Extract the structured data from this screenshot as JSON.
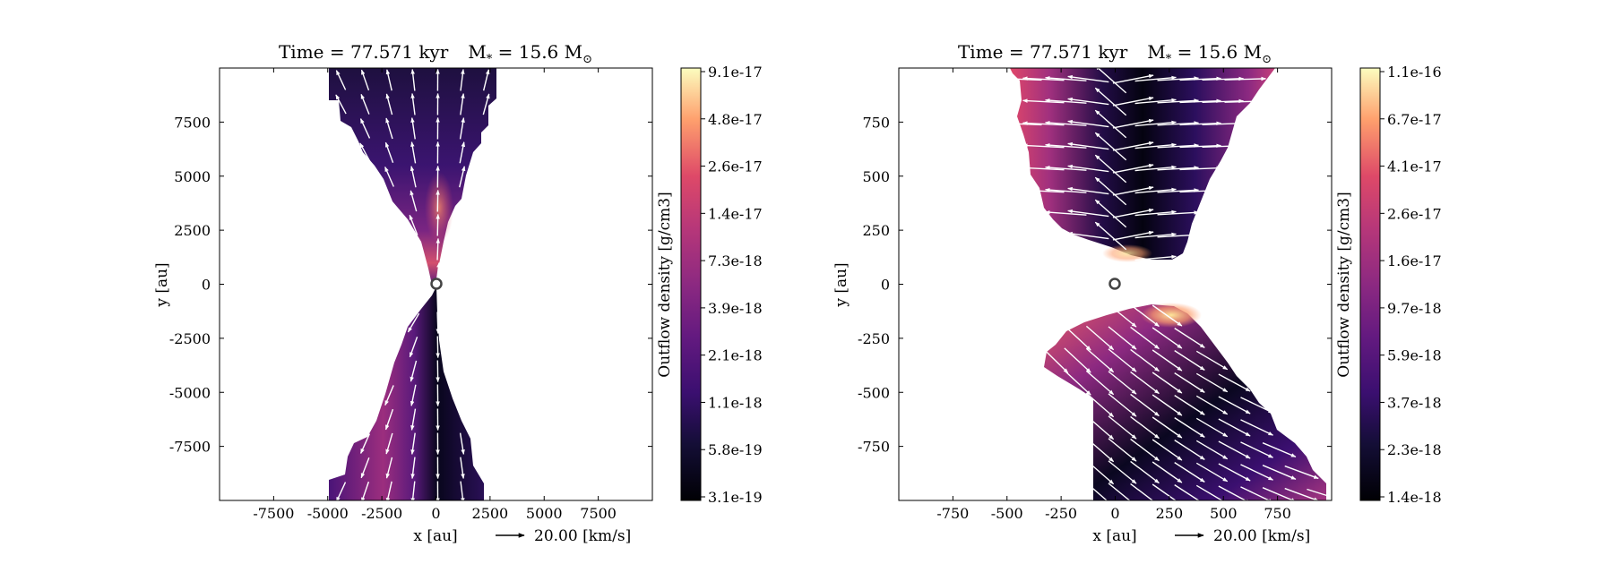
{
  "chart_data": [
    {
      "type": "heatmap",
      "panel": "left",
      "title_time": "Time = 77.571 kyr",
      "title_mass_prefix": "M",
      "title_mass_sub": "*",
      "title_mass_value": " = 15.6 M",
      "title_mass_unit_sub": "⊙",
      "xlabel": "x [au]",
      "ylabel": "y [au]",
      "xlim": [
        -10000,
        10000
      ],
      "ylim": [
        -10000,
        10000
      ],
      "xticks": [
        -7500,
        -5000,
        -2500,
        0,
        2500,
        5000,
        7500
      ],
      "xtick_labels": [
        "-7500",
        "-5000",
        "-2500",
        "0",
        "2500",
        "5000",
        "7500"
      ],
      "yticks": [
        7500,
        5000,
        2500,
        0,
        -2500,
        -5000,
        -7500
      ],
      "ytick_labels": [
        "7500",
        "5000",
        "2500",
        "0",
        "-2500",
        "-5000",
        "-7500"
      ],
      "colorbar_label": "Outflow density [g/cm3]",
      "colorbar_ticks": [
        "9.1e-17",
        "4.8e-17",
        "2.6e-17",
        "1.4e-17",
        "7.3e-18",
        "3.9e-18",
        "2.1e-18",
        "1.1e-18",
        "5.8e-19",
        "3.1e-19"
      ],
      "colormap": "magma",
      "vector_key_label": "20.00 [km/s]",
      "star_position": [
        0,
        0
      ]
    },
    {
      "type": "heatmap",
      "panel": "right",
      "title_time": "Time = 77.571 kyr",
      "title_mass_prefix": "M",
      "title_mass_sub": "*",
      "title_mass_value": " = 15.6 M",
      "title_mass_unit_sub": "⊙",
      "xlabel": "x [au]",
      "ylabel": "y [au]",
      "xlim": [
        -1000,
        1000
      ],
      "ylim": [
        -1000,
        1000
      ],
      "xticks": [
        -750,
        -500,
        -250,
        0,
        250,
        500,
        750
      ],
      "xtick_labels": [
        "-750",
        "-500",
        "-250",
        "0",
        "250",
        "500",
        "750"
      ],
      "yticks": [
        750,
        500,
        250,
        0,
        -250,
        -500,
        -750
      ],
      "ytick_labels": [
        "750",
        "500",
        "250",
        "0",
        "-250",
        "-500",
        "-750"
      ],
      "colorbar_label": "Outflow density [g/cm3]",
      "colorbar_ticks": [
        "1.1e-16",
        "6.7e-17",
        "4.1e-17",
        "2.6e-17",
        "1.6e-17",
        "9.7e-18",
        "5.9e-18",
        "3.7e-18",
        "2.3e-18",
        "1.4e-18"
      ],
      "colormap": "magma",
      "vector_key_label": "20.00 [km/s]",
      "star_position": [
        0,
        0
      ]
    }
  ]
}
